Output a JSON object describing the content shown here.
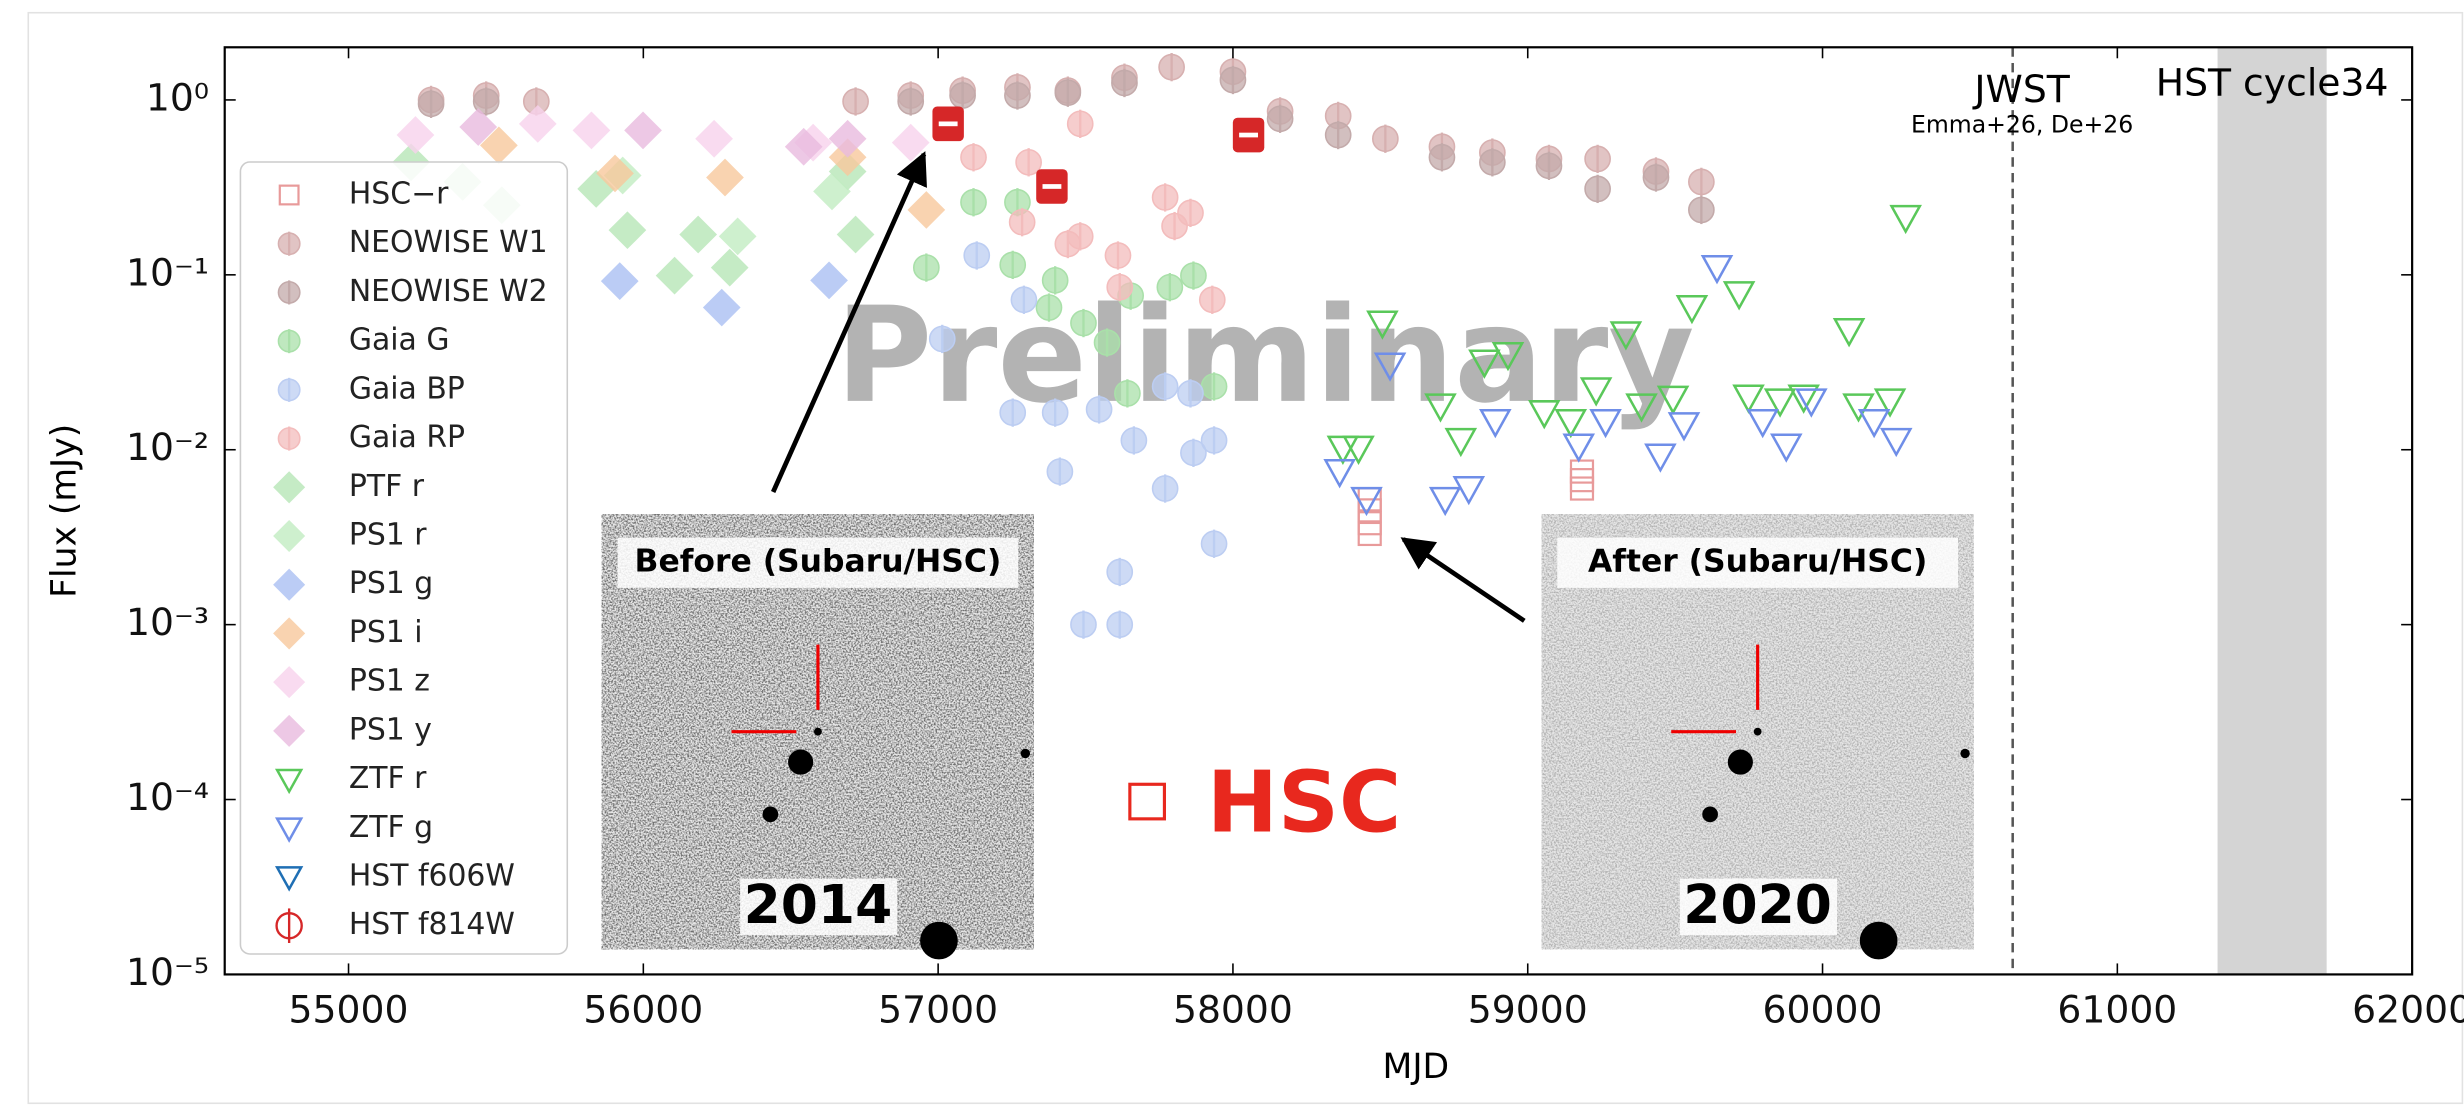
{
  "chart_data": {
    "type": "scatter",
    "x_label": "MJD",
    "y_label": "Flux (mJy)",
    "log_y": true,
    "xlim": [
      54580,
      62000
    ],
    "ylim": [
      1e-05,
      2
    ],
    "xticks": [
      55000,
      56000,
      57000,
      58000,
      59000,
      60000,
      61000,
      62000
    ],
    "yticks": [
      {
        "value": 1e-05,
        "label": "10⁻⁵"
      },
      {
        "value": 0.0001,
        "label": "10⁻⁴"
      },
      {
        "value": 0.001,
        "label": "10⁻³"
      },
      {
        "value": 0.01,
        "label": "10⁻²"
      },
      {
        "value": 0.1,
        "label": "10⁻¹"
      },
      {
        "value": 1,
        "label": "10⁰"
      }
    ],
    "legend": "upper left",
    "series": [
      {
        "name": "HSC−r",
        "marker": "square-open",
        "color": "#e89a9a",
        "x": [
          58464,
          58464,
          58464,
          58464,
          59184,
          59184,
          59184
        ],
        "values": [
          0.0052,
          0.0045,
          0.0038,
          0.0033,
          0.0075,
          0.0067,
          0.006
        ]
      },
      {
        "name": "NEOWISE W1",
        "marker": "circle",
        "color": "#d7b0b0",
        "x": [
          55280,
          55467,
          55637,
          56720,
          56907,
          57083,
          57269,
          57440,
          57632,
          57792,
          58000,
          58160,
          58357,
          58517,
          58709,
          58880,
          59072,
          59237,
          59435,
          59589
        ],
        "values": [
          1.0,
          1.06,
          0.98,
          0.98,
          1.06,
          1.13,
          1.18,
          1.13,
          1.34,
          1.54,
          1.45,
          0.86,
          0.81,
          0.6,
          0.54,
          0.5,
          0.46,
          0.46,
          0.39,
          0.34
        ]
      },
      {
        "name": "NEOWISE W2",
        "marker": "circle",
        "color": "#c3aaaa",
        "x": [
          55280,
          55467,
          56907,
          57083,
          57269,
          57440,
          57632,
          58000,
          58160,
          58357,
          58709,
          58880,
          59072,
          59237,
          59435,
          59589
        ],
        "values": [
          0.95,
          0.98,
          0.98,
          1.06,
          1.06,
          1.1,
          1.25,
          1.3,
          0.78,
          0.63,
          0.47,
          0.44,
          0.42,
          0.31,
          0.36,
          0.235
        ]
      },
      {
        "name": "Gaia G",
        "marker": "circle",
        "color": "#a9e0a9",
        "x": [
          57120,
          57269,
          56960,
          57253,
          57397,
          57493,
          57376,
          57653,
          57786,
          57866,
          57936,
          57642,
          57573
        ],
        "values": [
          0.26,
          0.26,
          0.11,
          0.114,
          0.093,
          0.053,
          0.065,
          0.076,
          0.085,
          0.099,
          0.023,
          0.021,
          0.041
        ]
      },
      {
        "name": "Gaia BP",
        "marker": "circle",
        "color": "#bccdf2",
        "x": [
          57131,
          57014,
          57291,
          57253,
          57397,
          57413,
          57546,
          57664,
          57770,
          57866,
          57936,
          57936,
          57616,
          57493,
          57616,
          57856,
          57770
        ],
        "values": [
          0.129,
          0.043,
          0.072,
          0.0163,
          0.0163,
          0.0075,
          0.017,
          0.0113,
          0.006,
          0.0096,
          0.0113,
          0.0029,
          0.002,
          0.001,
          0.001,
          0.021,
          0.023
        ]
      },
      {
        "name": "Gaia RP",
        "marker": "circle",
        "color": "#f3bcbc",
        "x": [
          57120,
          57307,
          57482,
          57285,
          57482,
          57610,
          57770,
          57856,
          57802,
          57930,
          57616,
          57440
        ],
        "values": [
          0.47,
          0.44,
          0.73,
          0.2,
          0.166,
          0.129,
          0.277,
          0.226,
          0.19,
          0.072,
          0.085,
          0.15
        ]
      },
      {
        "name": "PTF r",
        "marker": "diamond",
        "color": "#b6e6b6",
        "x": [
          55212,
          55387,
          55520,
          55840,
          55946,
          56106,
          56186,
          56293,
          56693,
          56720
        ],
        "values": [
          0.44,
          0.34,
          0.25,
          0.31,
          0.18,
          0.099,
          0.17,
          0.11,
          0.39,
          0.17
        ]
      },
      {
        "name": "PS1 r",
        "marker": "diamond",
        "color": "#c2ecc2",
        "x": [
          55930,
          56320,
          56640
        ],
        "values": [
          0.37,
          0.166,
          0.3
        ]
      },
      {
        "name": "PS1 g",
        "marker": "diamond",
        "color": "#aabff2",
        "x": [
          55920,
          56266,
          56630
        ],
        "values": [
          0.092,
          0.065,
          0.093
        ]
      },
      {
        "name": "PS1 i",
        "marker": "diamond",
        "color": "#f8c89c",
        "x": [
          55510,
          55904,
          56277,
          56693,
          56960
        ],
        "values": [
          0.55,
          0.38,
          0.36,
          0.47,
          0.235
        ]
      },
      {
        "name": "PS1 z",
        "marker": "diamond",
        "color": "#f8d2ec",
        "x": [
          55227,
          55642,
          55824,
          56240,
          56576,
          56907
        ],
        "values": [
          0.63,
          0.73,
          0.67,
          0.6,
          0.57,
          0.57
        ]
      },
      {
        "name": "PS1 y",
        "marker": "diamond",
        "color": "#e8bade",
        "x": [
          55440,
          55999,
          56544,
          56693
        ],
        "values": [
          0.7,
          0.67,
          0.54,
          0.6
        ]
      },
      {
        "name": "ZTF r",
        "marker": "tri-down-open",
        "color": "#5ac85a",
        "x": [
          58507,
          58373,
          58426,
          58704,
          58773,
          58853,
          58933,
          59056,
          59146,
          59232,
          59333,
          59386,
          59493,
          59557,
          59717,
          59749,
          59856,
          59936,
          60090,
          60122,
          60229,
          60282
        ],
        "values": [
          0.053,
          0.0102,
          0.0102,
          0.0178,
          0.0113,
          0.0317,
          0.035,
          0.0163,
          0.0145,
          0.022,
          0.046,
          0.0178,
          0.0197,
          0.065,
          0.078,
          0.02,
          0.019,
          0.02,
          0.048,
          0.0178,
          0.019,
          0.213
        ]
      },
      {
        "name": "ZTF g",
        "marker": "tri-down-open",
        "color": "#6f8ee8",
        "x": [
          58362,
          58453,
          58533,
          58720,
          58800,
          58890,
          59173,
          59264,
          59450,
          59530,
          59642,
          59797,
          59877,
          59962,
          60175,
          60250
        ],
        "values": [
          0.0075,
          0.0052,
          0.0305,
          0.0052,
          0.006,
          0.0145,
          0.0105,
          0.0145,
          0.0092,
          0.0139,
          0.11,
          0.0145,
          0.0105,
          0.019,
          0.0145,
          0.0113
        ]
      },
      {
        "name": "HST f606W",
        "marker": "tri-down-open",
        "color": "#1f6fb4",
        "x": [],
        "values": []
      },
      {
        "name": "HST f814W",
        "marker": "square-bar",
        "color": "#d62728",
        "x": [
          57034,
          57386,
          58053
        ],
        "values": [
          0.73,
          0.32,
          0.63
        ]
      }
    ],
    "vline": {
      "x": 60645,
      "label": "JWST",
      "sublabel": "Emma+26, De+26"
    },
    "span": {
      "x": [
        61340,
        61710
      ],
      "label": "HST cycle34"
    },
    "watermark": "Preliminary",
    "marker_note": "HSC",
    "insets": [
      {
        "title": "Before (Subaru/HSC)",
        "year": "2014"
      },
      {
        "title": "After (Subaru/HSC)",
        "year": "2020"
      }
    ]
  }
}
